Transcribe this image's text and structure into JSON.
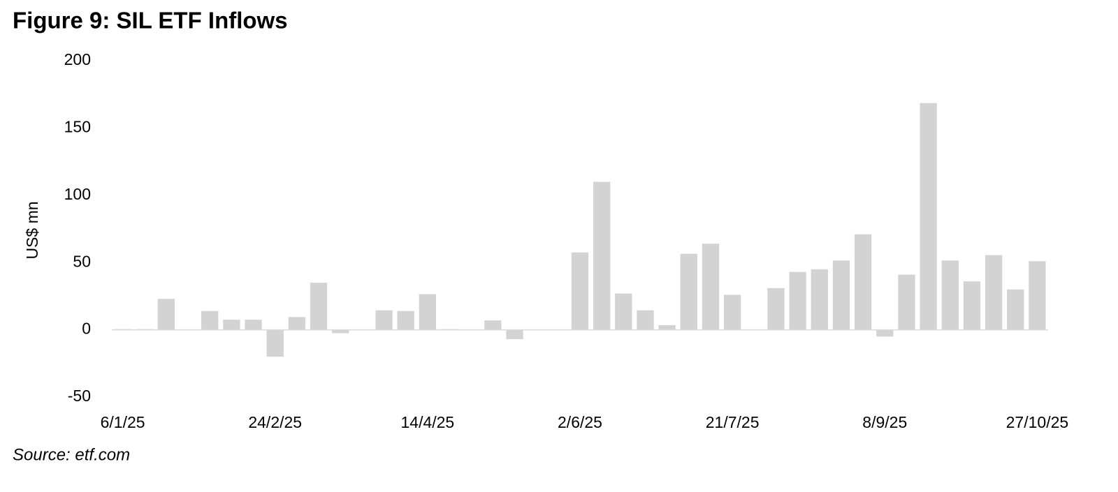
{
  "chart_data": {
    "type": "bar",
    "title": "Figure 9: SIL ETF Inflows",
    "ylabel": "US$ mn",
    "source": "Source: etf.com",
    "categories": [
      "6/1/25",
      null,
      null,
      null,
      null,
      null,
      null,
      "24/2/25",
      null,
      null,
      null,
      null,
      null,
      null,
      "14/4/25",
      null,
      null,
      null,
      null,
      null,
      null,
      "2/6/25",
      null,
      null,
      null,
      null,
      null,
      null,
      "21/7/25",
      null,
      null,
      null,
      null,
      null,
      null,
      "8/9/25",
      null,
      null,
      null,
      null,
      null,
      null,
      "27/10/25"
    ],
    "values": [
      0.5,
      0.5,
      23,
      0,
      14,
      7.5,
      7.5,
      -20,
      9.5,
      35,
      -2.5,
      0,
      14.5,
      14,
      26.5,
      0.5,
      0,
      7,
      -7,
      0,
      0,
      57.5,
      110,
      27,
      14.5,
      3.5,
      56.5,
      64,
      26,
      0,
      31,
      43,
      45,
      51.5,
      71,
      -5,
      41,
      168.5,
      51.5,
      36,
      55.5,
      30,
      51
    ],
    "color": "#d3d3d3",
    "ylim": [
      -50,
      200
    ],
    "yticks": [
      -50,
      0,
      50,
      100,
      150,
      200
    ],
    "grid": false
  }
}
